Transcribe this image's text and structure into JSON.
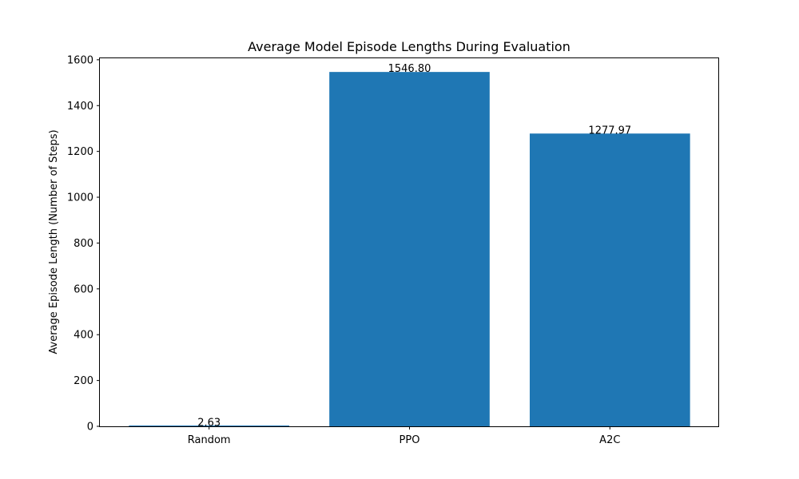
{
  "chart_data": {
    "type": "bar",
    "title": "Average Model Episode Lengths During Evaluation",
    "xlabel": "",
    "ylabel": "Average Episode Length (Number of Steps)",
    "categories": [
      "Random",
      "PPO",
      "A2C"
    ],
    "values": [
      2.63,
      1546.8,
      1277.97
    ],
    "value_labels": [
      "2.63",
      "1546.80",
      "1277.97"
    ],
    "ylim": [
      0,
      1610
    ],
    "yticks": [
      0,
      200,
      400,
      600,
      800,
      1000,
      1200,
      1400,
      1600
    ],
    "grid": false,
    "legend": "none",
    "bar_color": "#1f77b4"
  }
}
